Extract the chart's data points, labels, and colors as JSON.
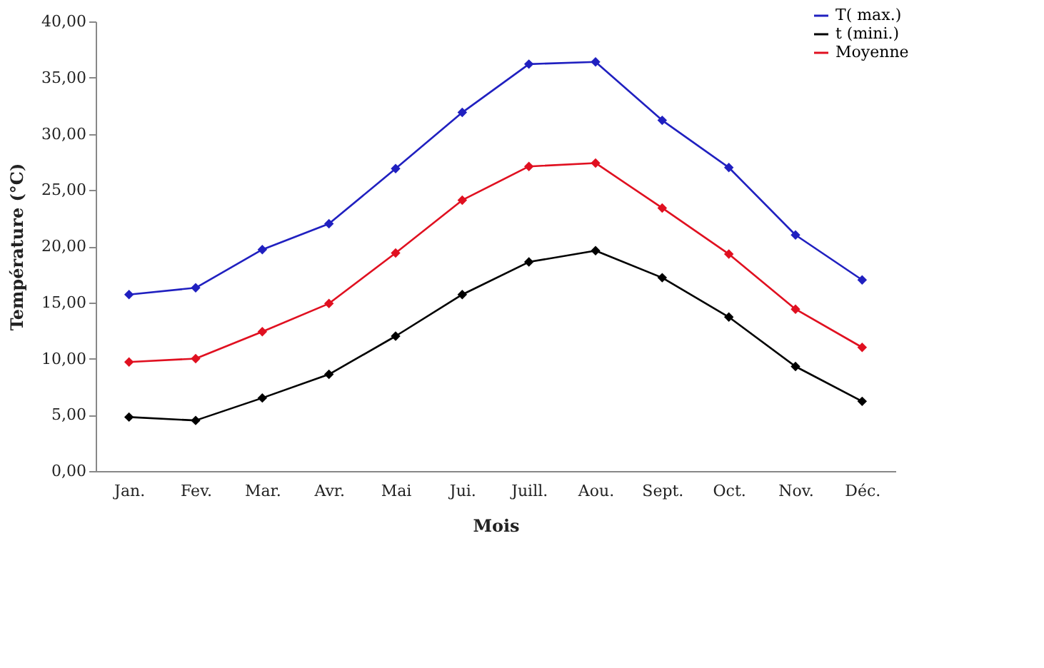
{
  "chart_data": {
    "type": "line",
    "xlabel": "Mois",
    "ylabel": "Température (°C)",
    "categories": [
      "Jan.",
      "Fev.",
      "Mar.",
      "Avr.",
      "Mai",
      "Jui.",
      "Juill.",
      "Aou.",
      "Sept.",
      "Oct.",
      "Nov.",
      "Déc."
    ],
    "series": [
      {
        "name": "T( max.)",
        "color": "#2020c0",
        "values": [
          15.7,
          16.3,
          19.7,
          22.0,
          26.9,
          31.9,
          36.2,
          36.4,
          31.2,
          27.0,
          21.0,
          17.0
        ]
      },
      {
        "name": "t (mini.)",
        "color": "#000000",
        "values": [
          4.8,
          4.5,
          6.5,
          8.6,
          12.0,
          15.7,
          18.6,
          19.6,
          17.2,
          13.7,
          9.3,
          6.2
        ]
      },
      {
        "name": "Moyenne",
        "color": "#e01020",
        "values": [
          9.7,
          10.0,
          12.4,
          14.9,
          19.4,
          24.1,
          27.1,
          27.4,
          23.4,
          19.3,
          14.4,
          11.0
        ]
      }
    ],
    "ylim": [
      0,
      40
    ],
    "yticks": [
      {
        "value": 0,
        "label": "0,00"
      },
      {
        "value": 5,
        "label": "5,00"
      },
      {
        "value": 10,
        "label": "10,00"
      },
      {
        "value": 15,
        "label": "15,00"
      },
      {
        "value": 20,
        "label": "20,00"
      },
      {
        "value": 25,
        "label": "25,00"
      },
      {
        "value": 30,
        "label": "30,00"
      },
      {
        "value": 35,
        "label": "35,00"
      },
      {
        "value": 40,
        "label": "40,00"
      }
    ],
    "grid": false,
    "legend": "top right",
    "marker": "diamond",
    "line_style": "solid"
  }
}
